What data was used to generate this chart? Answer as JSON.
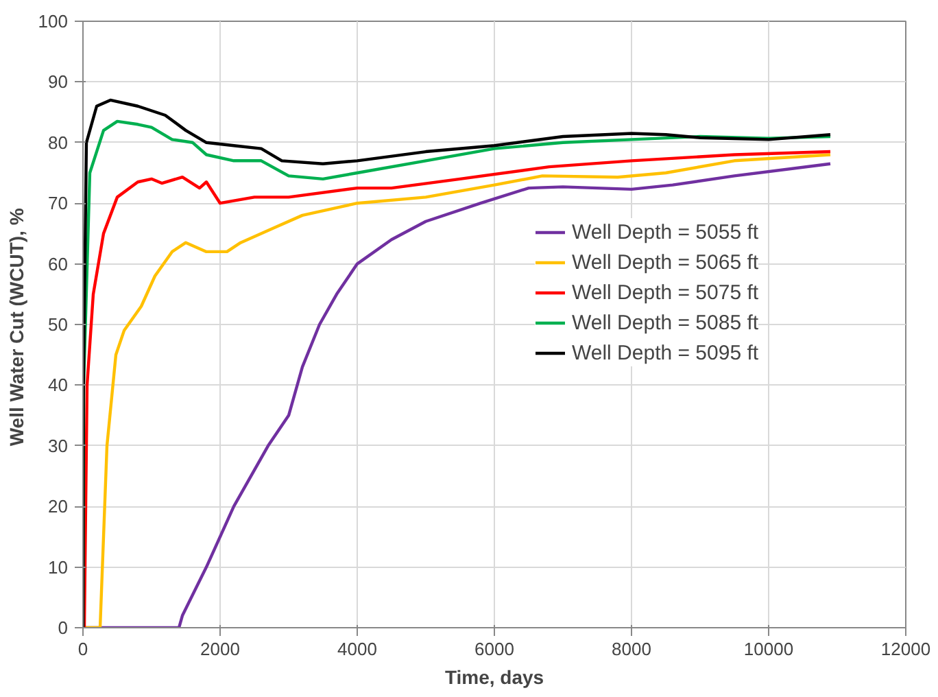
{
  "chart_data": {
    "type": "line",
    "xlabel": "Time, days",
    "ylabel": "Well Water Cut (WCUT),  %",
    "xlim": [
      0,
      12000
    ],
    "ylim": [
      0,
      100
    ],
    "xticks": [
      0,
      2000,
      4000,
      6000,
      8000,
      10000,
      12000
    ],
    "yticks": [
      0,
      10,
      20,
      30,
      40,
      50,
      60,
      70,
      80,
      90,
      100
    ],
    "grid": true,
    "legend": "right",
    "marker": "none",
    "line_style": "solid",
    "series": [
      {
        "name": "Well Depth = 5055 ft",
        "color": "#7030a0",
        "x": [
          0,
          1400,
          1450,
          1800,
          2200,
          2700,
          3000,
          3200,
          3450,
          3700,
          4000,
          4500,
          5000,
          5800,
          6500,
          7000,
          8000,
          8600,
          9500,
          10900
        ],
        "values": [
          0,
          0,
          2,
          10,
          20,
          30,
          35,
          43,
          50,
          55,
          60,
          64,
          67,
          70,
          72.5,
          72.7,
          72.3,
          73,
          74.5,
          76.5
        ]
      },
      {
        "name": "Well Depth = 5065 ft",
        "color": "#ffc000",
        "x": [
          0,
          250,
          350,
          480,
          600,
          850,
          1050,
          1300,
          1500,
          1800,
          2100,
          2300,
          2800,
          3200,
          3800,
          4000,
          5000,
          6000,
          6700,
          7800,
          8500,
          9500,
          10900
        ],
        "values": [
          0,
          0,
          30,
          45,
          49,
          53,
          58,
          62,
          63.5,
          62,
          62,
          63.5,
          66,
          68,
          69.5,
          70,
          71,
          73,
          74.5,
          74.3,
          75,
          77,
          78
        ]
      },
      {
        "name": "Well Depth = 5075 ft",
        "color": "#ff0000",
        "x": [
          0,
          20,
          60,
          150,
          300,
          500,
          800,
          1000,
          1150,
          1450,
          1700,
          1800,
          2000,
          2500,
          3000,
          4000,
          4500,
          5500,
          6800,
          8000,
          9500,
          10900
        ],
        "values": [
          0,
          0,
          40,
          55,
          65,
          71,
          73.5,
          74,
          73.3,
          74.3,
          72.5,
          73.5,
          70,
          71,
          71,
          72.5,
          72.5,
          74,
          76,
          77,
          78,
          78.5
        ]
      },
      {
        "name": "Well Depth = 5085 ft",
        "color": "#00b050",
        "x": [
          0,
          10,
          100,
          300,
          500,
          800,
          1000,
          1300,
          1600,
          1800,
          2200,
          2600,
          3000,
          3500,
          4000,
          5000,
          6000,
          7000,
          8000,
          9000,
          10000,
          10900
        ],
        "values": [
          0,
          40,
          75,
          82,
          83.5,
          83,
          82.5,
          80.5,
          80,
          78,
          77,
          77,
          74.5,
          74,
          75,
          77,
          79,
          80,
          80.5,
          81,
          80.7,
          81
        ]
      },
      {
        "name": "Well Depth = 5095 ft",
        "color": "#000000",
        "x": [
          0,
          5,
          50,
          200,
          400,
          800,
          1200,
          1500,
          1800,
          2200,
          2600,
          2900,
          3500,
          4000,
          5000,
          6000,
          7000,
          8000,
          8500,
          9000,
          10000,
          10900
        ],
        "values": [
          0,
          38,
          80,
          86,
          87,
          86,
          84.5,
          82,
          80,
          79.5,
          79,
          77,
          76.5,
          77,
          78.5,
          79.5,
          81,
          81.5,
          81.3,
          80.8,
          80.5,
          81.3
        ]
      }
    ]
  }
}
